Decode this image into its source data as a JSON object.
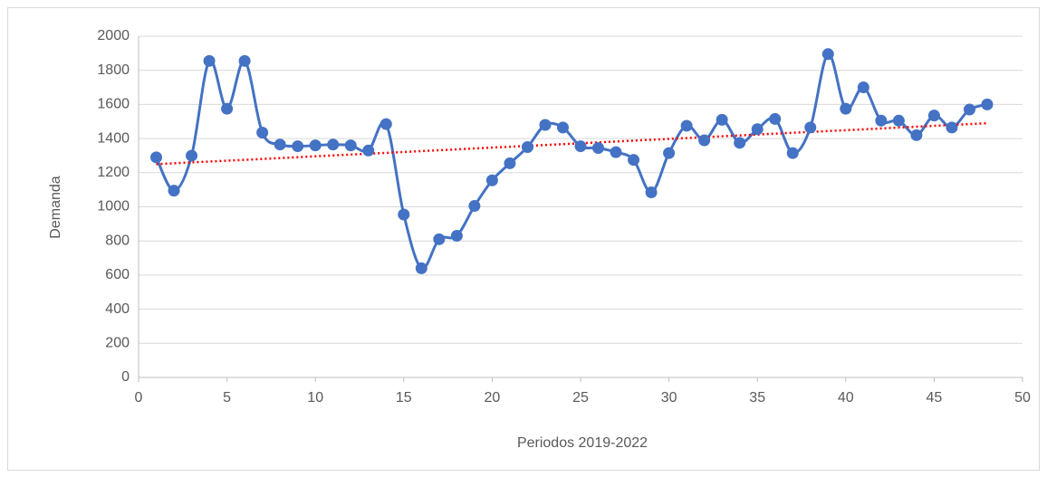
{
  "chart_data": {
    "type": "scatter-smooth",
    "xlabel": "Periodos 2019-2022",
    "ylabel": "Demanda",
    "x": [
      1,
      2,
      3,
      4,
      5,
      6,
      7,
      8,
      9,
      10,
      11,
      12,
      13,
      14,
      15,
      16,
      17,
      18,
      19,
      20,
      21,
      22,
      23,
      24,
      25,
      26,
      27,
      28,
      29,
      30,
      31,
      32,
      33,
      34,
      35,
      36,
      37,
      38,
      39,
      40,
      41,
      42,
      43,
      44,
      45,
      46,
      47,
      48
    ],
    "series": [
      {
        "color": "#4472c4",
        "values": [
          1290,
          1095,
          1300,
          1855,
          1575,
          1855,
          1435,
          1365,
          1355,
          1360,
          1365,
          1360,
          1330,
          1485,
          955,
          640,
          810,
          830,
          1005,
          1155,
          1255,
          1350,
          1480,
          1465,
          1355,
          1345,
          1320,
          1275,
          1085,
          1315,
          1475,
          1390,
          1510,
          1375,
          1455,
          1515,
          1315,
          1465,
          1895,
          1575,
          1700,
          1505,
          1505,
          1420,
          1535,
          1465,
          1570,
          1600
        ]
      }
    ],
    "trendline": {
      "color": "#ff0000",
      "x": [
        1,
        48
      ],
      "values": [
        1250,
        1490
      ]
    },
    "xlim": [
      0,
      50
    ],
    "xticks": [
      0,
      5,
      10,
      15,
      20,
      25,
      30,
      35,
      40,
      45,
      50
    ],
    "ylim": [
      0,
      2000
    ],
    "yticks": [
      0,
      200,
      400,
      600,
      800,
      1000,
      1200,
      1400,
      1600,
      1800,
      2000
    ],
    "grid": true
  }
}
